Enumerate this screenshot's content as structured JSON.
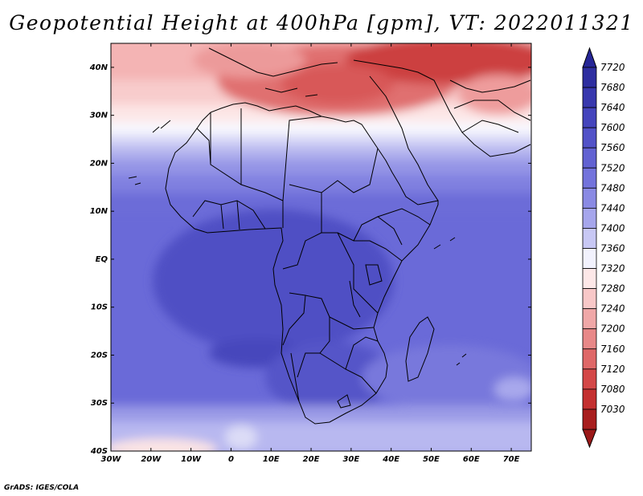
{
  "title": "Geopotential Height at 400hPa [gpm], VT: 2022011321",
  "credit": "GrADS: IGES/COLA",
  "map": {
    "lon_range": [
      -30,
      75
    ],
    "lat_range": [
      -40,
      45
    ],
    "lon_ticks": [
      {
        "lon": -30,
        "label": "30W"
      },
      {
        "lon": -20,
        "label": "20W"
      },
      {
        "lon": -10,
        "label": "10W"
      },
      {
        "lon": 0,
        "label": "0"
      },
      {
        "lon": 10,
        "label": "10E"
      },
      {
        "lon": 20,
        "label": "20E"
      },
      {
        "lon": 30,
        "label": "30E"
      },
      {
        "lon": 40,
        "label": "40E"
      },
      {
        "lon": 50,
        "label": "50E"
      },
      {
        "lon": 60,
        "label": "60E"
      },
      {
        "lon": 70,
        "label": "70E"
      }
    ],
    "lat_ticks": [
      {
        "lat": 40,
        "label": "40N"
      },
      {
        "lat": 30,
        "label": "30N"
      },
      {
        "lat": 20,
        "label": "20N"
      },
      {
        "lat": 10,
        "label": "10N"
      },
      {
        "lat": 0,
        "label": "EQ"
      },
      {
        "lat": -10,
        "label": "10S"
      },
      {
        "lat": -20,
        "label": "20S"
      },
      {
        "lat": -30,
        "label": "30S"
      },
      {
        "lat": -40,
        "label": "40S"
      }
    ]
  },
  "colorbar": {
    "levels": [
      {
        "label": "7720",
        "color": "#2e2ea0"
      },
      {
        "label": "7680",
        "color": "#3838ae"
      },
      {
        "label": "7640",
        "color": "#4545bd"
      },
      {
        "label": "7600",
        "color": "#5252c8"
      },
      {
        "label": "7560",
        "color": "#6262d2"
      },
      {
        "label": "7520",
        "color": "#7373dc"
      },
      {
        "label": "7480",
        "color": "#8a8ae4"
      },
      {
        "label": "7440",
        "color": "#a6a6ec"
      },
      {
        "label": "7400",
        "color": "#c8c8f4"
      },
      {
        "label": "7360",
        "color": "#f2f2fd"
      },
      {
        "label": "7320",
        "color": "#fde8e8"
      },
      {
        "label": "7280",
        "color": "#f8c8c8"
      },
      {
        "label": "7240",
        "color": "#f0a8a8"
      },
      {
        "label": "7200",
        "color": "#e88888"
      },
      {
        "label": "7160",
        "color": "#df6868"
      },
      {
        "label": "7120",
        "color": "#d44848"
      },
      {
        "label": "7080",
        "color": "#c43030"
      },
      {
        "label": "7030",
        "color": "#a81e1e"
      }
    ],
    "top_arrow_color": "#262696",
    "bottom_arrow_color": "#9a1818"
  }
}
